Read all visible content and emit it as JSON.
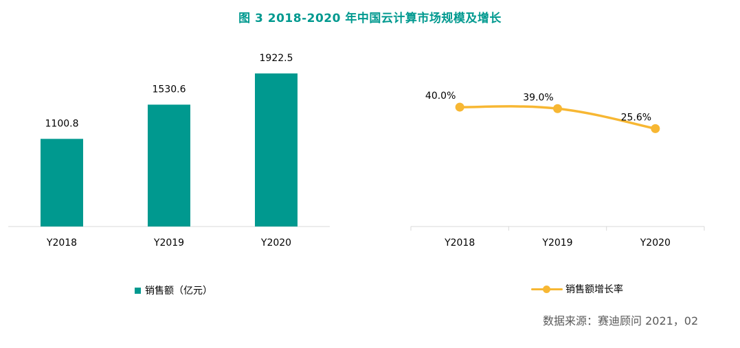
{
  "figure_title": "图 3   2018-2020 年中国云计算市场规模及增长",
  "source_note": "数据来源：赛迪顾问    2021，02",
  "colors": {
    "bar": "#00998f",
    "line": "#f7b733",
    "title": "#00998f",
    "axis": "#d9d9d9"
  },
  "chart_data": [
    {
      "type": "bar",
      "categories": [
        "Y2018",
        "Y2019",
        "Y2020"
      ],
      "series": [
        {
          "name": "销售额（亿元）",
          "values": [
            1100.8,
            1530.6,
            1922.5
          ]
        }
      ],
      "value_labels": [
        "1100.8",
        "1530.6",
        "1922.5"
      ],
      "ylim": [
        0,
        2500
      ],
      "legend_position": "bottom",
      "grid": false
    },
    {
      "type": "line",
      "categories": [
        "Y2018",
        "Y2019",
        "Y2020"
      ],
      "series": [
        {
          "name": "销售额增长率",
          "values": [
            40.0,
            39.0,
            25.6
          ]
        }
      ],
      "value_labels": [
        "40.0%",
        "39.0%",
        "25.6%"
      ],
      "ylim": [
        -40,
        52
      ],
      "legend_position": "bottom",
      "grid": false
    }
  ]
}
